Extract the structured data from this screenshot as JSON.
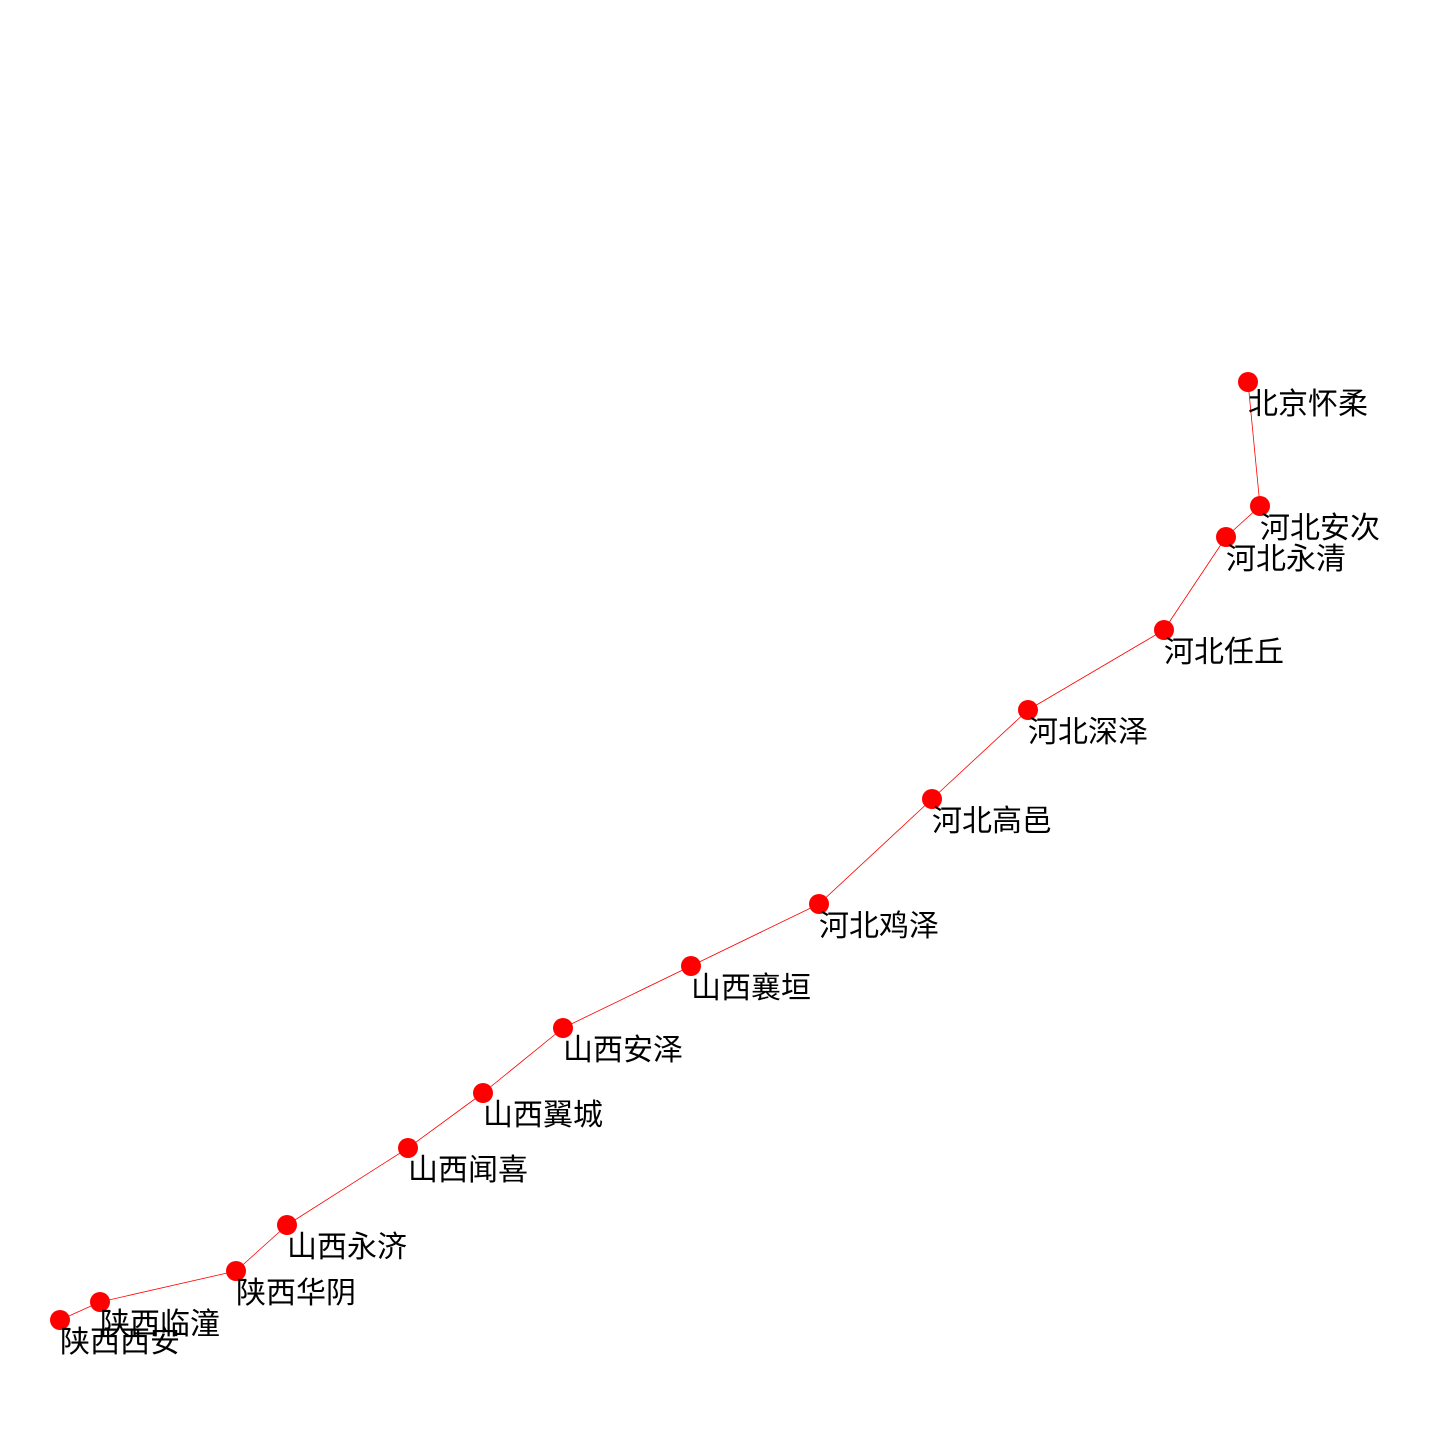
{
  "route": {
    "colors": {
      "node": "#ff0000",
      "edge": "#ff0000",
      "label": "#000000"
    },
    "stops": [
      "北京怀柔",
      "河北安次",
      "河北永清",
      "河北任丘",
      "河北深泽",
      "河北高邑",
      "河北鸡泽",
      "山西襄垣",
      "山西安泽",
      "山西翼城",
      "山西闻喜",
      "山西永济",
      "陕西华阴",
      "陕西临潼",
      "陕西西安"
    ]
  }
}
